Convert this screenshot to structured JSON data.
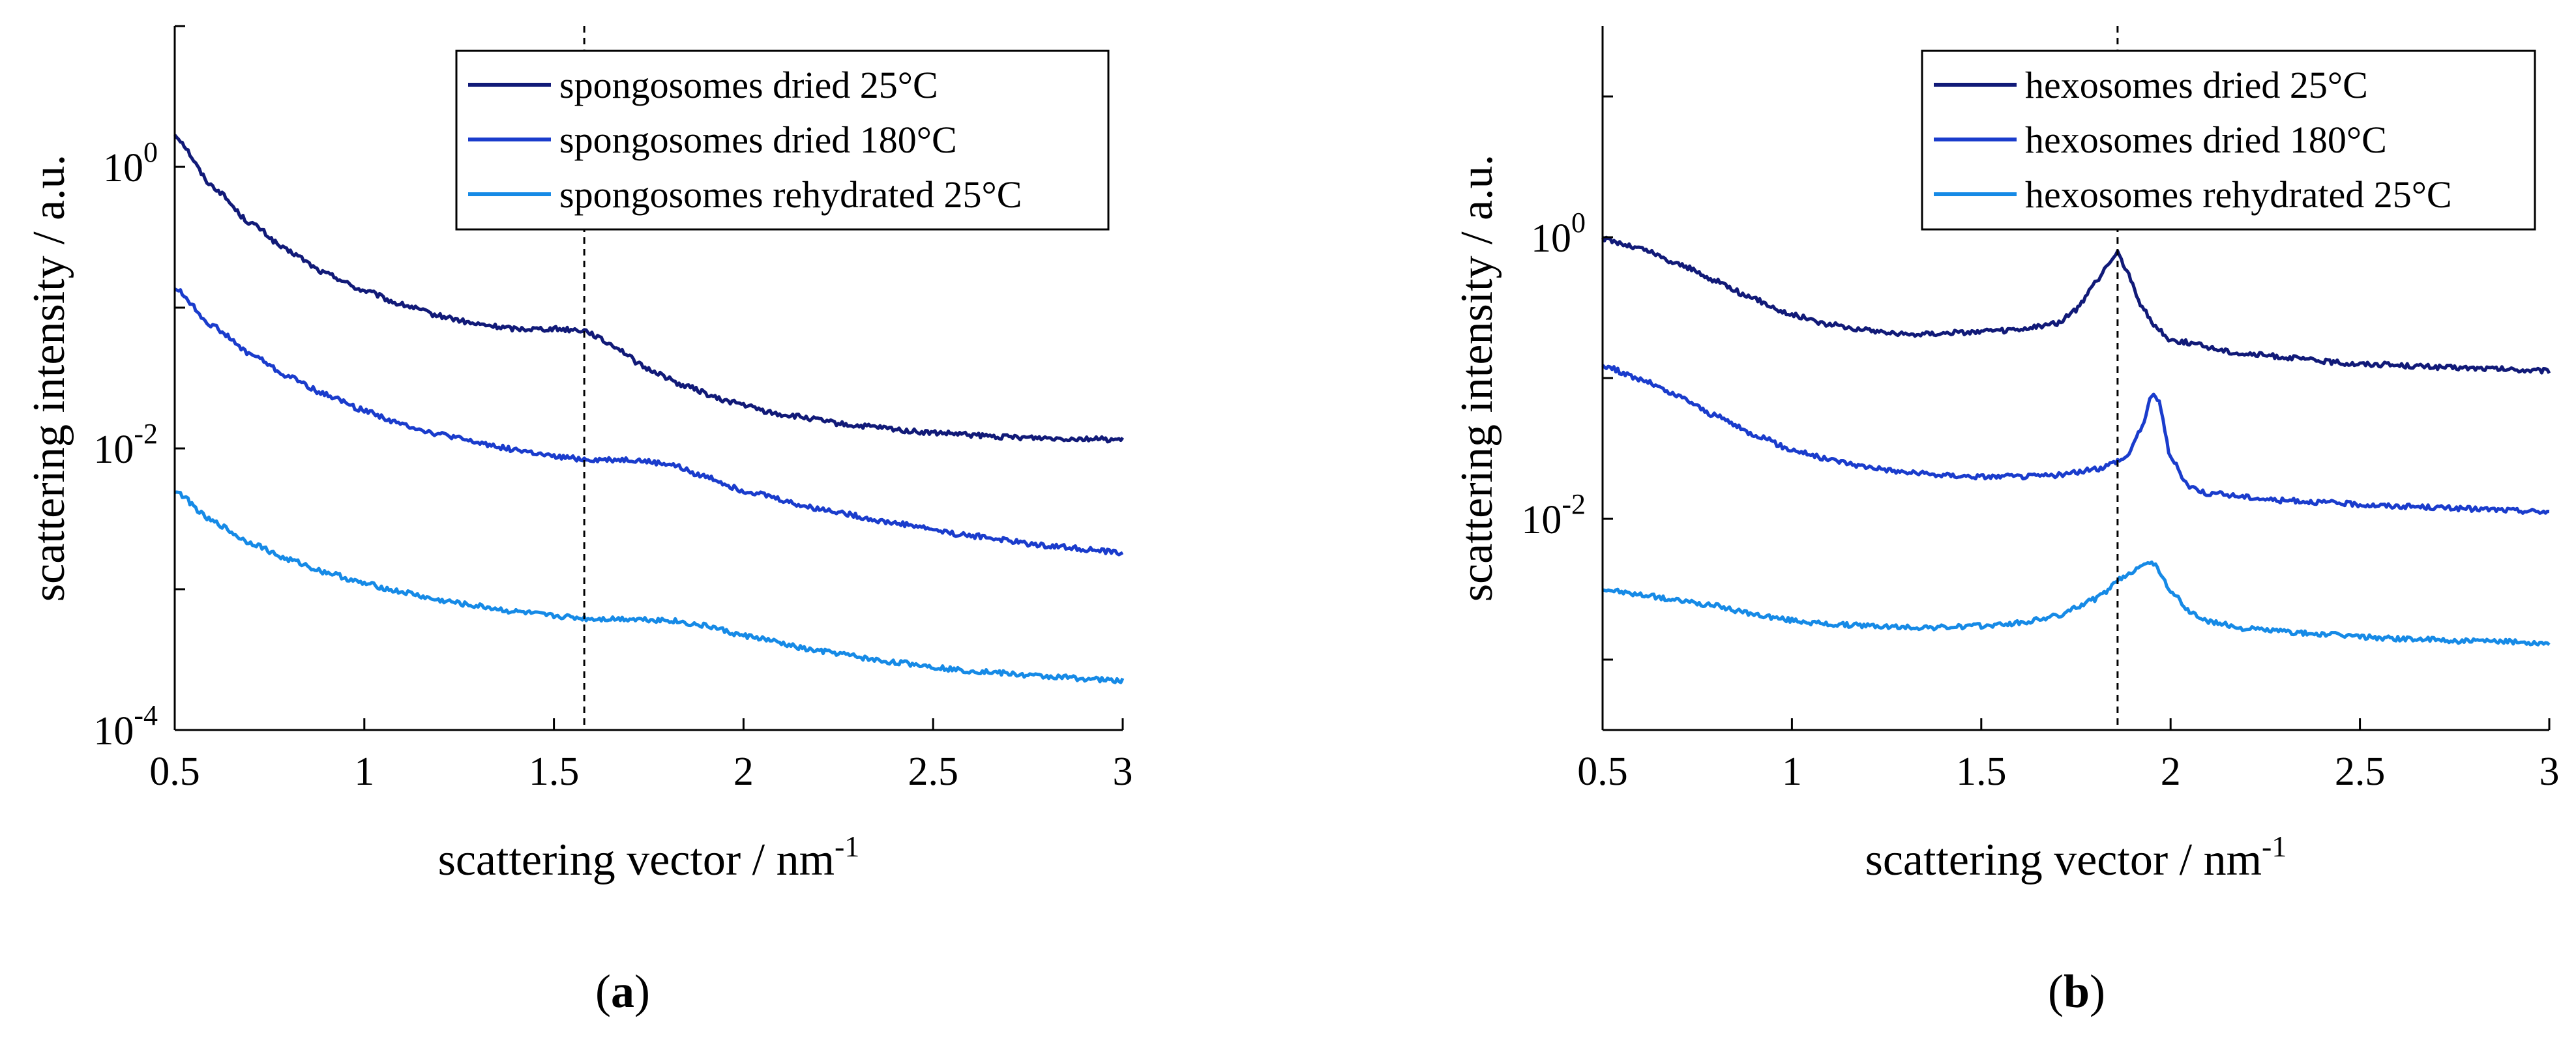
{
  "chart_data": [
    {
      "panel_label": "a",
      "type": "line",
      "xlabel": "scattering vector / nm",
      "xlabel_sup": "-1",
      "ylabel": "scattering intensity / a.u.",
      "xlim": [
        0.5,
        3
      ],
      "ylim_log10": [
        -4,
        1
      ],
      "xticks": [
        "0.5",
        "1",
        "1.5",
        "2",
        "2.5",
        "3"
      ],
      "yticks": [
        {
          "base": "10",
          "exp": "-4"
        },
        {
          "base": "10",
          "exp": "-2"
        },
        {
          "base": "10",
          "exp": "0"
        }
      ],
      "vline_x": 1.58,
      "legend_position": "top-right",
      "series": [
        {
          "name": "spongosomes dried 25°C",
          "color": "#111a78",
          "x": [
            0.5,
            0.6,
            0.7,
            0.8,
            0.9,
            1.0,
            1.1,
            1.2,
            1.3,
            1.4,
            1.5,
            1.58,
            1.65,
            1.75,
            1.85,
            1.95,
            2.1,
            2.3,
            2.5,
            2.7,
            2.9,
            3.0
          ],
          "y": [
            0.23,
            -0.14,
            -0.4,
            -0.6,
            -0.76,
            -0.88,
            -0.98,
            -1.06,
            -1.12,
            -1.15,
            -1.15,
            -1.16,
            -1.26,
            -1.44,
            -1.56,
            -1.66,
            -1.76,
            -1.84,
            -1.89,
            -1.92,
            -1.93,
            -1.94
          ]
        },
        {
          "name": "spongosomes dried 180°C",
          "color": "#1a3ccc",
          "x": [
            0.5,
            0.6,
            0.7,
            0.8,
            0.9,
            1.0,
            1.1,
            1.2,
            1.3,
            1.4,
            1.5,
            1.6,
            1.7,
            1.8,
            1.9,
            2.0,
            2.2,
            2.4,
            2.6,
            2.8,
            3.0
          ],
          "y": [
            -0.86,
            -1.13,
            -1.33,
            -1.49,
            -1.62,
            -1.73,
            -1.83,
            -1.9,
            -1.96,
            -2.01,
            -2.06,
            -2.08,
            -2.08,
            -2.11,
            -2.2,
            -2.3,
            -2.43,
            -2.53,
            -2.62,
            -2.69,
            -2.74
          ]
        },
        {
          "name": "spongosomes rehydrated 25°C",
          "color": "#168ae6",
          "x": [
            0.5,
            0.6,
            0.7,
            0.8,
            0.9,
            1.0,
            1.1,
            1.2,
            1.3,
            1.4,
            1.5,
            1.6,
            1.7,
            1.8,
            1.9,
            2.0,
            2.2,
            2.4,
            2.6,
            2.8,
            3.0
          ],
          "y": [
            -2.3,
            -2.52,
            -2.67,
            -2.79,
            -2.88,
            -2.96,
            -3.02,
            -3.08,
            -3.12,
            -3.16,
            -3.19,
            -3.21,
            -3.21,
            -3.22,
            -3.26,
            -3.33,
            -3.44,
            -3.52,
            -3.58,
            -3.62,
            -3.65
          ]
        }
      ]
    },
    {
      "panel_label": "b",
      "type": "line",
      "xlabel": "scattering vector / nm",
      "xlabel_sup": "-1",
      "ylabel": "scattering intensity / a.u.",
      "xlim": [
        0.5,
        3
      ],
      "ylim_log10": [
        -3.5,
        1.5
      ],
      "xticks": [
        "0.5",
        "1",
        "1.5",
        "2",
        "2.5",
        "3"
      ],
      "yticks": [
        {
          "base": "10",
          "exp": "-2"
        },
        {
          "base": "10",
          "exp": "0"
        }
      ],
      "vline_x": 1.86,
      "legend_position": "top-right",
      "series": [
        {
          "name": "hexosomes dried 25°C",
          "color": "#111a78",
          "x": [
            0.5,
            0.6,
            0.7,
            0.8,
            0.9,
            1.0,
            1.1,
            1.2,
            1.3,
            1.4,
            1.5,
            1.6,
            1.7,
            1.75,
            1.8,
            1.84,
            1.86,
            1.88,
            1.92,
            1.96,
            2.0,
            2.2,
            2.5,
            2.8,
            3.0
          ],
          "y": [
            -0.01,
            -0.08,
            -0.19,
            -0.31,
            -0.44,
            -0.55,
            -0.62,
            -0.66,
            -0.69,
            -0.68,
            -0.67,
            -0.66,
            -0.61,
            -0.52,
            -0.33,
            -0.17,
            -0.11,
            -0.21,
            -0.47,
            -0.64,
            -0.73,
            -0.83,
            -0.9,
            -0.93,
            -0.95
          ]
        },
        {
          "name": "hexosomes dried 180°C",
          "color": "#1a3ccc",
          "x": [
            0.5,
            0.6,
            0.7,
            0.8,
            0.9,
            1.0,
            1.1,
            1.2,
            1.3,
            1.4,
            1.5,
            1.6,
            1.7,
            1.8,
            1.88,
            1.92,
            1.95,
            1.97,
            2.0,
            2.05,
            2.1,
            2.3,
            2.6,
            2.8,
            3.0
          ],
          "y": [
            -0.91,
            -1.01,
            -1.13,
            -1.27,
            -1.4,
            -1.51,
            -1.58,
            -1.63,
            -1.67,
            -1.69,
            -1.7,
            -1.7,
            -1.69,
            -1.65,
            -1.57,
            -1.38,
            -1.12,
            -1.17,
            -1.57,
            -1.77,
            -1.82,
            -1.87,
            -1.91,
            -1.93,
            -1.95
          ]
        },
        {
          "name": "hexosomes rehydrated 25°C",
          "color": "#168ae6",
          "x": [
            0.5,
            0.6,
            0.7,
            0.8,
            0.9,
            1.0,
            1.1,
            1.2,
            1.3,
            1.4,
            1.5,
            1.6,
            1.7,
            1.8,
            1.88,
            1.93,
            1.96,
            2.0,
            2.05,
            2.1,
            2.2,
            2.4,
            2.6,
            2.8,
            3.0
          ],
          "y": [
            -2.5,
            -2.54,
            -2.58,
            -2.62,
            -2.68,
            -2.72,
            -2.75,
            -2.76,
            -2.77,
            -2.77,
            -2.76,
            -2.74,
            -2.69,
            -2.57,
            -2.41,
            -2.31,
            -2.33,
            -2.51,
            -2.66,
            -2.73,
            -2.78,
            -2.82,
            -2.85,
            -2.87,
            -2.88
          ]
        }
      ]
    }
  ]
}
